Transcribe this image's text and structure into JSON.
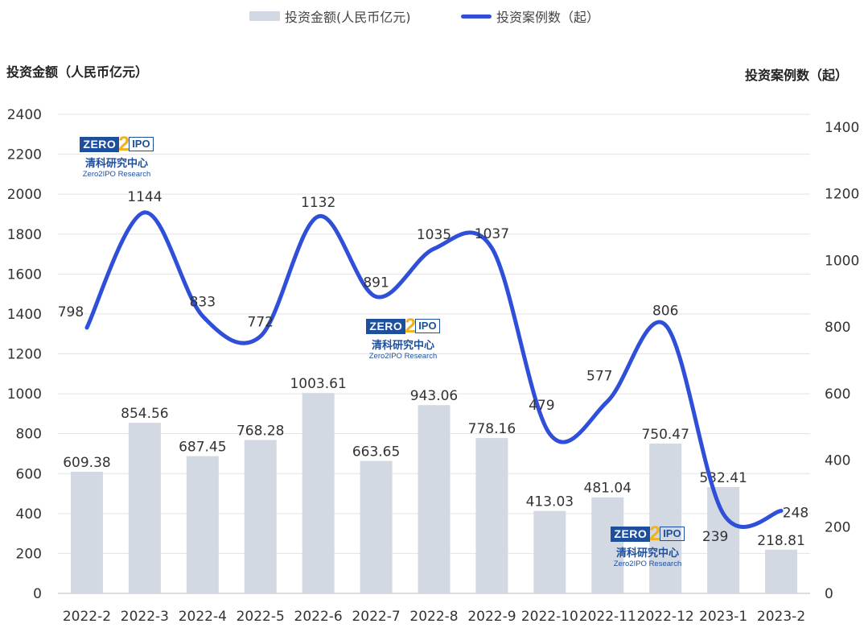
{
  "legend": {
    "bar_label": "投资金额(人民币亿元)",
    "line_label": "投资案例数（起）"
  },
  "axis": {
    "left_title": "投资金额（人民币亿元）",
    "right_title": "投资案例数（起）"
  },
  "logo": {
    "zero": "ZERO",
    "two": "2",
    "ipo": "IPO",
    "cn": "清科研究中心",
    "en": "Zero2IPO Research"
  },
  "colors": {
    "bar": "#d2d9e3",
    "line": "#2f4fd8",
    "grid": "#e3e3e3",
    "text": "#333333"
  },
  "chart_data": {
    "type": "bar+line",
    "categories": [
      "2022-2",
      "2022-3",
      "2022-4",
      "2022-5",
      "2022-6",
      "2022-7",
      "2022-8",
      "2022-9",
      "2022-10",
      "2022-11",
      "2022-12",
      "2023-1",
      "2023-2"
    ],
    "series": [
      {
        "name": "投资金额(人民币亿元)",
        "type": "bar",
        "axis": "left",
        "values": [
          609.38,
          854.56,
          687.45,
          768.28,
          1003.61,
          663.65,
          943.06,
          778.16,
          413.03,
          481.04,
          750.47,
          532.41,
          218.81
        ],
        "labels": [
          "609.38",
          "854.56",
          "687.45",
          "768.28",
          "1003.61",
          "663.65",
          "943.06",
          "778.16",
          "413.03",
          "481.04",
          "750.47",
          "532.41",
          "218.81"
        ]
      },
      {
        "name": "投资案例数（起）",
        "type": "line",
        "axis": "right",
        "values": [
          798,
          1144,
          833,
          772,
          1132,
          891,
          1035,
          1037,
          479,
          577,
          806,
          239,
          248
        ],
        "labels": [
          "798",
          "1144",
          "833",
          "772",
          "1132",
          "891",
          "1035",
          "1037",
          "479",
          "577",
          "806",
          "239",
          "248"
        ]
      }
    ],
    "y_left": {
      "min": 0,
      "max": 2400,
      "ticks": [
        "0",
        "200",
        "400",
        "600",
        "800",
        "1000",
        "1200",
        "1400",
        "1600",
        "1800",
        "2000",
        "2200",
        "2400"
      ]
    },
    "y_right": {
      "min": 0,
      "max": 1400,
      "ticks": [
        "0",
        "200",
        "400",
        "600",
        "800",
        "1000",
        "1200",
        "1400"
      ]
    },
    "grid": true,
    "legend_position": "top-center"
  }
}
